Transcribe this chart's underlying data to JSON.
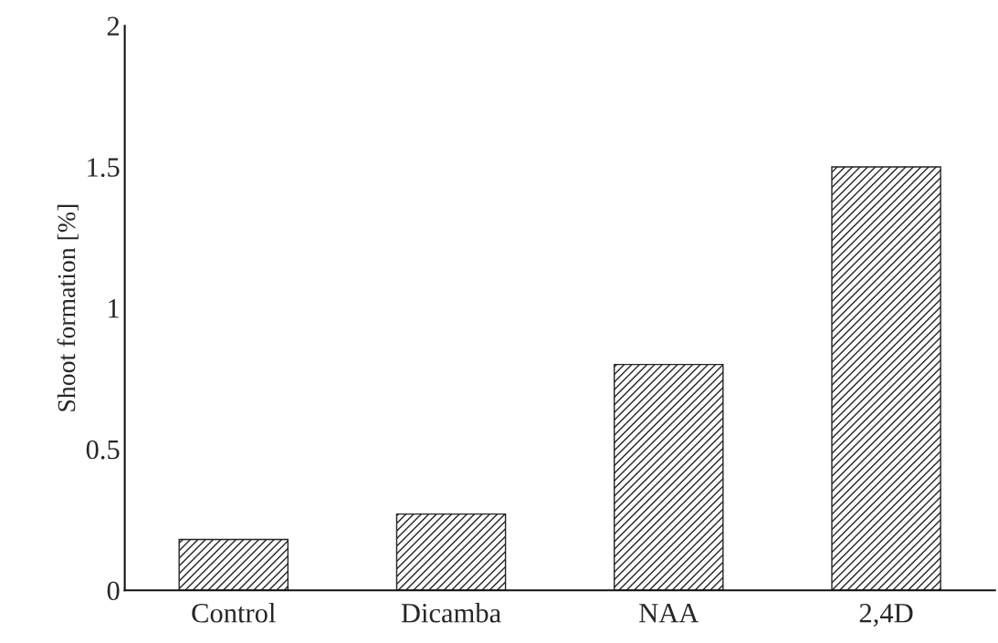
{
  "chart_data": {
    "type": "bar",
    "ylabel": "Shoot formation [%]",
    "categories": [
      "Control",
      "Dicamba",
      "NAA",
      "2,4D"
    ],
    "values": [
      0.18,
      0.27,
      0.8,
      1.5
    ],
    "color": "#222222",
    "ylim": [
      0,
      2
    ],
    "yticks": [
      0,
      {
        "value": 0.5,
        "label": "0.5"
      },
      1,
      {
        "value": 1.5,
        "label": "1.5"
      },
      2
    ],
    "grid": false,
    "legend": false
  }
}
